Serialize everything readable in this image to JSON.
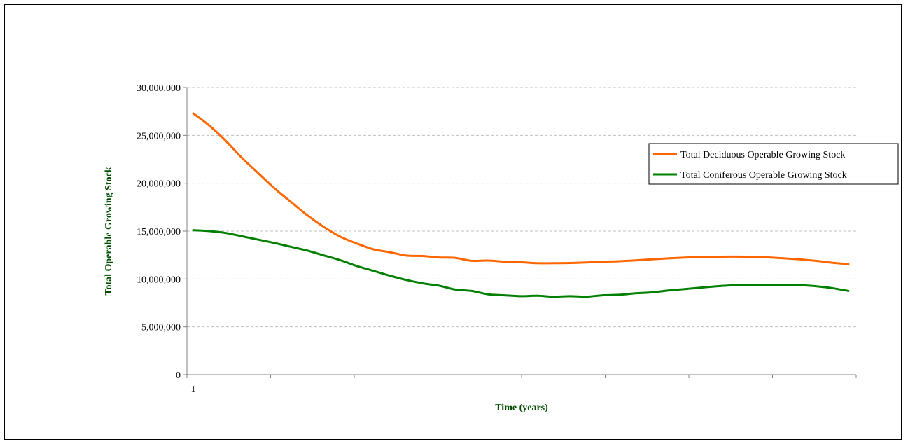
{
  "chart_data": {
    "type": "line",
    "title": "",
    "xlabel": "Time (years)",
    "ylabel": "Total Operable Growing Stock",
    "x_tick_labels": [
      "1"
    ],
    "y_tick_labels": [
      "0",
      "5,000,000",
      "10,000,000",
      "15,000,000",
      "20,000,000",
      "25,000,000",
      "30,000,000"
    ],
    "ylim": [
      0,
      30000000
    ],
    "xlim": [
      0,
      40
    ],
    "grid": true,
    "legend_position": "right",
    "series": [
      {
        "name": "Total Deciduous Operable Growing Stock",
        "color": "#ff6600",
        "x": [
          0,
          1,
          2,
          3,
          4,
          5,
          6,
          7,
          8,
          9,
          10,
          11,
          12,
          13,
          14,
          15,
          16,
          17,
          18,
          19,
          20,
          21,
          22,
          23,
          24,
          25,
          26,
          27,
          28,
          29,
          30,
          31,
          32,
          33,
          34,
          35,
          36,
          37,
          38,
          39,
          40
        ],
        "values": [
          27300000,
          26000000,
          24400000,
          22600000,
          21000000,
          19400000,
          18000000,
          16600000,
          15400000,
          14400000,
          13700000,
          13100000,
          12800000,
          12450000,
          12400000,
          12250000,
          12200000,
          11900000,
          11930000,
          11800000,
          11750000,
          11650000,
          11650000,
          11670000,
          11720000,
          11800000,
          11850000,
          11950000,
          12050000,
          12150000,
          12240000,
          12300000,
          12330000,
          12340000,
          12320000,
          12260000,
          12170000,
          12050000,
          11900000,
          11700000,
          11550000
        ]
      },
      {
        "name": "Total Coniferous Operable Growing Stock",
        "color": "#008000",
        "x": [
          0,
          1,
          2,
          3,
          4,
          5,
          6,
          7,
          8,
          9,
          10,
          11,
          12,
          13,
          14,
          15,
          16,
          17,
          18,
          19,
          20,
          21,
          22,
          23,
          24,
          25,
          26,
          27,
          28,
          29,
          30,
          31,
          32,
          33,
          34,
          35,
          36,
          37,
          38,
          39,
          40
        ],
        "values": [
          15100000,
          15000000,
          14800000,
          14450000,
          14100000,
          13750000,
          13350000,
          12950000,
          12450000,
          11950000,
          11350000,
          10850000,
          10350000,
          9900000,
          9550000,
          9300000,
          8900000,
          8750000,
          8400000,
          8300000,
          8200000,
          8250000,
          8150000,
          8200000,
          8150000,
          8300000,
          8350000,
          8500000,
          8600000,
          8800000,
          8950000,
          9100000,
          9250000,
          9350000,
          9400000,
          9400000,
          9400000,
          9350000,
          9250000,
          9050000,
          8750000
        ]
      }
    ]
  }
}
